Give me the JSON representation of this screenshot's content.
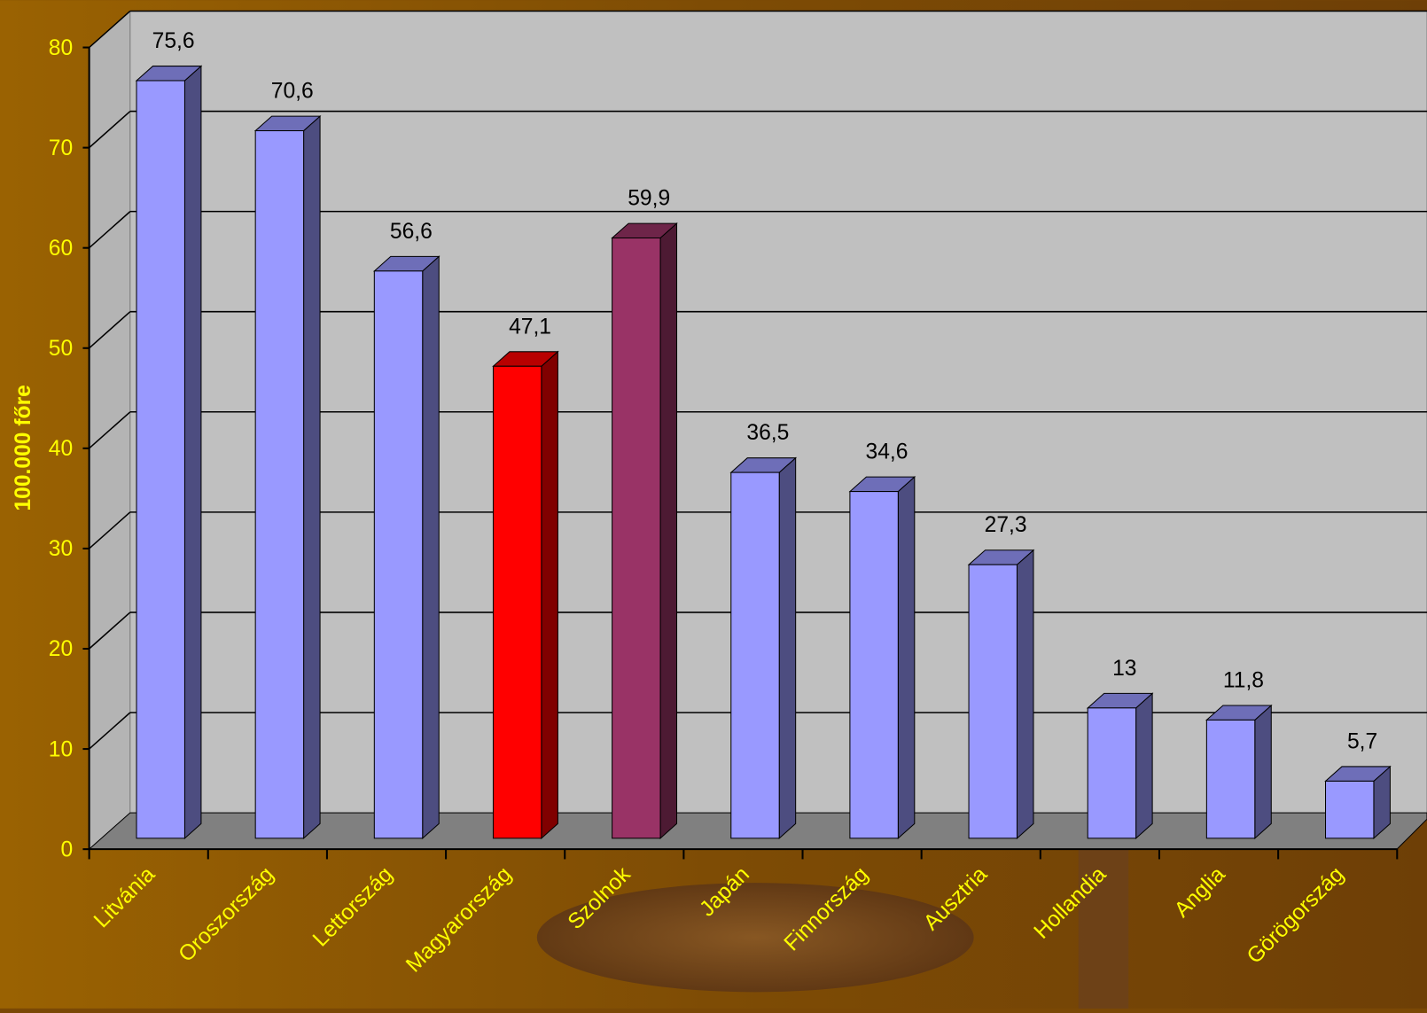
{
  "chart_data": {
    "type": "bar3d",
    "y_label": "100.000 főre",
    "categories": [
      "Litvánia",
      "Oroszország",
      "Lettország",
      "Magyarország",
      "Szolnok",
      "Japán",
      "Finnország",
      "Ausztria",
      "Hollandia",
      "Anglia",
      "Görögország"
    ],
    "values": [
      75.6,
      70.6,
      56.6,
      47.1,
      59.9,
      36.5,
      34.6,
      27.3,
      13,
      11.8,
      5.7
    ],
    "value_labels": [
      "75,6",
      "70,6",
      "56,6",
      "47,1",
      "59,9",
      "36,5",
      "34,6",
      "27,3",
      "13",
      "11,8",
      "5,7"
    ],
    "colors": [
      "#9999ff",
      "#9999ff",
      "#9999ff",
      "#ff0000",
      "#993366",
      "#9999ff",
      "#9999ff",
      "#9999ff",
      "#9999ff",
      "#9999ff",
      "#9999ff"
    ],
    "ylim": [
      0,
      80
    ],
    "yticks": [
      0,
      10,
      20,
      30,
      40,
      50,
      60,
      70,
      80
    ],
    "grid": true
  }
}
